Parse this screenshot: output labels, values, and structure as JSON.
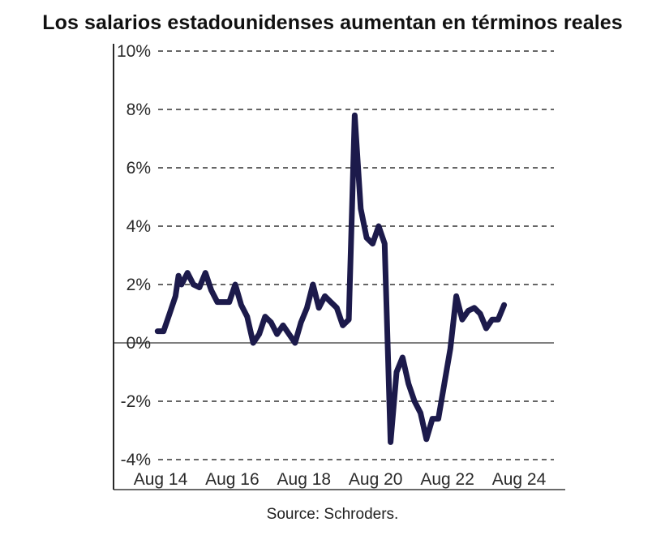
{
  "title": "Los salarios estadounidenses aumentan en términos reales",
  "source": "Source: Schroders.",
  "colors": {
    "line": "#1c1a4b",
    "grid": "#333333",
    "axis": "#111111",
    "text": "#2a2a2a"
  },
  "chart_data": {
    "type": "line",
    "title": "Los salarios estadounidenses aumentan en términos reales",
    "xlabel": "",
    "ylabel": "",
    "grid": "horizontal dashed",
    "ylim": [
      -4,
      10
    ],
    "xlim": [
      "2014-07",
      "2024-10"
    ],
    "y_ticks": [
      -4,
      -2,
      0,
      2,
      4,
      6,
      8,
      10
    ],
    "y_tick_labels": [
      "-4%",
      "-2%",
      "0%",
      "2%",
      "4%",
      "6%",
      "8%",
      "10%"
    ],
    "x_ticks": [
      "2014-08",
      "2016-08",
      "2018-08",
      "2020-08",
      "2022-08",
      "2024-08"
    ],
    "x_tick_labels": [
      "Aug 14",
      "Aug 16",
      "Aug 18",
      "Aug 20",
      "Aug 22",
      "Aug 24"
    ],
    "series": [
      {
        "name": "",
        "points": [
          [
            "2014-07",
            0.4
          ],
          [
            "2014-09",
            0.4
          ],
          [
            "2014-11",
            1.0
          ],
          [
            "2015-01",
            1.6
          ],
          [
            "2015-02",
            2.3
          ],
          [
            "2015-03",
            2.0
          ],
          [
            "2015-05",
            2.4
          ],
          [
            "2015-07",
            2.0
          ],
          [
            "2015-09",
            1.9
          ],
          [
            "2015-11",
            2.4
          ],
          [
            "2016-01",
            1.8
          ],
          [
            "2016-03",
            1.4
          ],
          [
            "2016-05",
            1.4
          ],
          [
            "2016-07",
            1.4
          ],
          [
            "2016-09",
            2.0
          ],
          [
            "2016-11",
            1.3
          ],
          [
            "2017-01",
            0.9
          ],
          [
            "2017-03",
            0.0
          ],
          [
            "2017-05",
            0.3
          ],
          [
            "2017-07",
            0.9
          ],
          [
            "2017-09",
            0.7
          ],
          [
            "2017-11",
            0.3
          ],
          [
            "2018-01",
            0.6
          ],
          [
            "2018-03",
            0.3
          ],
          [
            "2018-05",
            0.0
          ],
          [
            "2018-07",
            0.7
          ],
          [
            "2018-09",
            1.2
          ],
          [
            "2018-11",
            2.0
          ],
          [
            "2019-01",
            1.2
          ],
          [
            "2019-03",
            1.6
          ],
          [
            "2019-05",
            1.4
          ],
          [
            "2019-07",
            1.2
          ],
          [
            "2019-09",
            0.6
          ],
          [
            "2019-11",
            0.8
          ],
          [
            "2020-01",
            7.8
          ],
          [
            "2020-03",
            4.6
          ],
          [
            "2020-05",
            3.6
          ],
          [
            "2020-07",
            3.4
          ],
          [
            "2020-09",
            4.0
          ],
          [
            "2020-11",
            3.4
          ],
          [
            "2021-01",
            -3.4
          ],
          [
            "2021-03",
            -1.0
          ],
          [
            "2021-05",
            -0.5
          ],
          [
            "2021-07",
            -1.4
          ],
          [
            "2021-09",
            -2.0
          ],
          [
            "2021-11",
            -2.4
          ],
          [
            "2022-01",
            -3.3
          ],
          [
            "2022-03",
            -2.6
          ],
          [
            "2022-05",
            -2.6
          ],
          [
            "2022-07",
            -1.4
          ],
          [
            "2022-09",
            -0.2
          ],
          [
            "2022-11",
            1.6
          ],
          [
            "2023-01",
            0.8
          ],
          [
            "2023-03",
            1.1
          ],
          [
            "2023-05",
            1.2
          ],
          [
            "2023-07",
            1.0
          ],
          [
            "2023-09",
            0.5
          ],
          [
            "2023-11",
            0.8
          ],
          [
            "2024-01",
            0.8
          ],
          [
            "2024-03",
            1.3
          ]
        ]
      }
    ]
  }
}
